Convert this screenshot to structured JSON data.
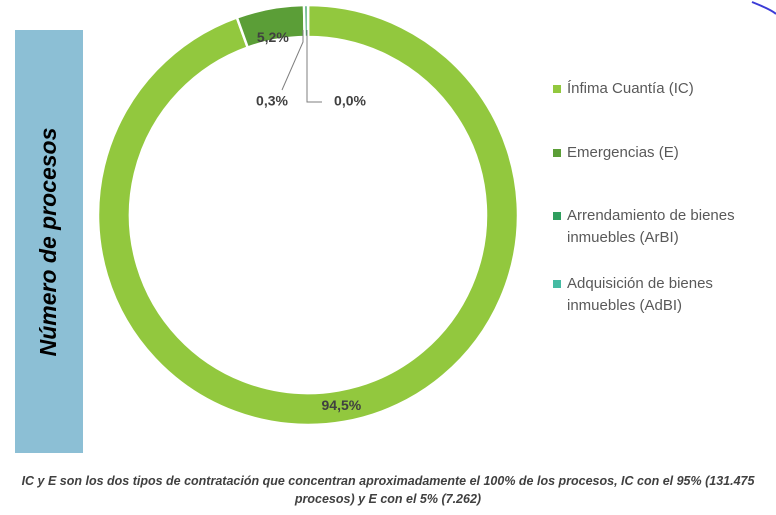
{
  "chart_data": {
    "type": "donut",
    "axis_label": "Número de procesos",
    "categories": [
      "Ínfima Cuantía (IC)",
      "Emergencias (E)",
      "Arrendamiento de bienes inmuebles (ArBI)",
      "Adquisición de bienes inmuebles (AdBI)"
    ],
    "values": [
      94.5,
      5.2,
      0.3,
      0.0
    ],
    "value_labels": [
      "94,5%",
      "5,2%",
      "0,3%",
      "0,0%"
    ],
    "colors": [
      "#92c83e",
      "#5b9e37",
      "#2f9e5e",
      "#45bba3"
    ],
    "legend": "right",
    "caption": "IC y E son los dos tipos de contratación que concentran aproximadamente el 100% de los procesos, IC con el 95% (131.475 procesos) y E con el 5% (7.262)"
  }
}
